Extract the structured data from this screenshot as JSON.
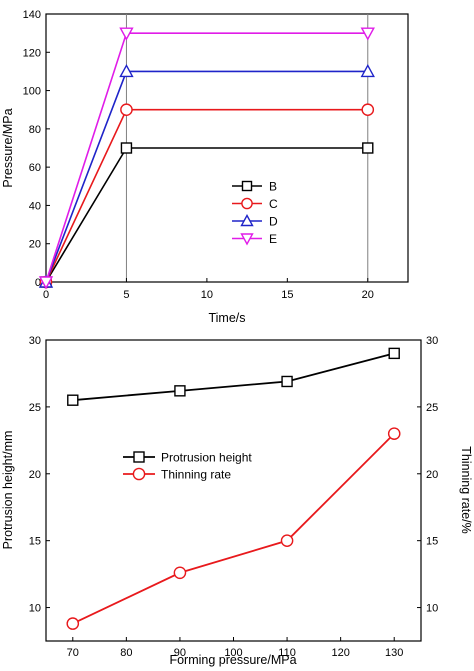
{
  "chart_data": [
    {
      "type": "line",
      "xlabel": "Time/s",
      "ylabel": "Pressure/MPa",
      "xlim": [
        0,
        22.5
      ],
      "ylim": [
        0,
        140
      ],
      "xticks": [
        0,
        5,
        10,
        15,
        20
      ],
      "yticks": [
        0,
        20,
        40,
        60,
        80,
        100,
        120,
        140
      ],
      "vertical_lines": [
        5,
        20
      ],
      "legend_position": "center-right",
      "series": [
        {
          "name": "B",
          "x": [
            0,
            5,
            20
          ],
          "y": [
            0,
            70,
            70
          ],
          "color": "#000000",
          "marker": "square"
        },
        {
          "name": "C",
          "x": [
            0,
            5,
            20
          ],
          "y": [
            0,
            90,
            90
          ],
          "color": "#e8191c",
          "marker": "circle"
        },
        {
          "name": "D",
          "x": [
            0,
            5,
            20
          ],
          "y": [
            0,
            110,
            110
          ],
          "color": "#1f24c9",
          "marker": "triangle-up"
        },
        {
          "name": "E",
          "x": [
            0,
            5,
            20
          ],
          "y": [
            0,
            130,
            130
          ],
          "color": "#e01ce8",
          "marker": "triangle-down"
        }
      ]
    },
    {
      "type": "line",
      "xlabel": "Forming pressure/MPa",
      "ylabel": "Protrusion height/mm",
      "y2label": "Thinning rate/%",
      "xlim": [
        65,
        135
      ],
      "ylim": [
        7.5,
        30
      ],
      "y2lim": [
        7.5,
        30
      ],
      "xticks": [
        70,
        80,
        90,
        100,
        110,
        120,
        130
      ],
      "yticks": [
        10,
        15,
        20,
        25,
        30
      ],
      "y2ticks": [
        10,
        15,
        20,
        25,
        30
      ],
      "legend_position": "center-left",
      "series": [
        {
          "name": "Protrusion height",
          "axis": "left",
          "x": [
            70,
            90,
            110,
            130
          ],
          "y": [
            25.5,
            26.2,
            26.9,
            29.0
          ],
          "color": "#000000",
          "marker": "square"
        },
        {
          "name": "Thinning rate",
          "axis": "right",
          "x": [
            70,
            90,
            110,
            130
          ],
          "y": [
            8.8,
            12.6,
            15.0,
            23.0
          ],
          "color": "#e8191c",
          "marker": "circle"
        }
      ]
    }
  ]
}
